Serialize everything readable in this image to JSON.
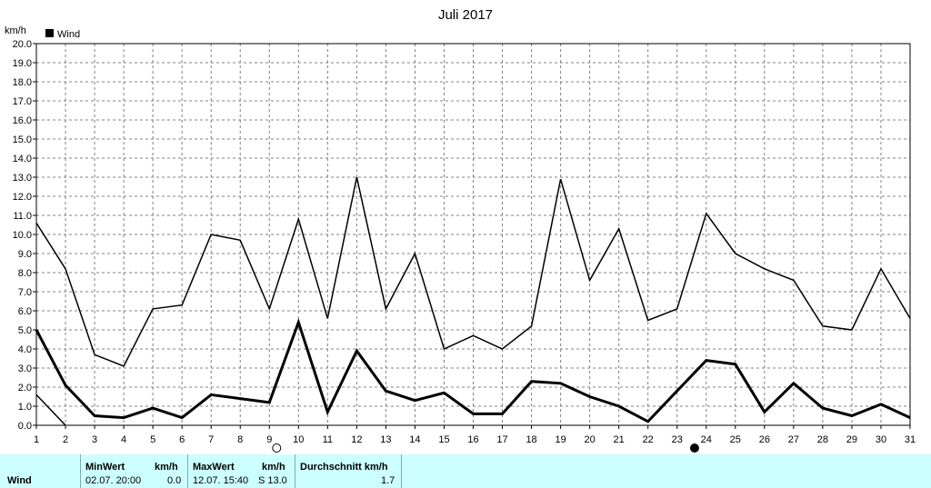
{
  "chart_data": {
    "type": "line",
    "title": "Juli 2017",
    "ylabel": "km/h",
    "ylim": [
      0,
      20
    ],
    "yticks": [
      "0.0",
      "1.0",
      "2.0",
      "3.0",
      "4.0",
      "5.0",
      "6.0",
      "7.0",
      "8.0",
      "9.0",
      "10.0",
      "11.0",
      "12.0",
      "13.0",
      "14.0",
      "15.0",
      "16.0",
      "17.0",
      "18.0",
      "19.0",
      "20.0"
    ],
    "x": [
      1,
      2,
      3,
      4,
      5,
      6,
      7,
      8,
      9,
      10,
      11,
      12,
      13,
      14,
      15,
      16,
      17,
      18,
      19,
      20,
      21,
      22,
      23,
      24,
      25,
      26,
      27,
      28,
      29,
      30,
      31
    ],
    "xticks": [
      "1",
      "2",
      "3",
      "4",
      "5",
      "6",
      "7",
      "8",
      "9",
      "10",
      "11",
      "12",
      "13",
      "14",
      "15",
      "16",
      "17",
      "18",
      "19",
      "20",
      "21",
      "22",
      "23",
      "24",
      "25",
      "26",
      "27",
      "28",
      "29",
      "30",
      "31"
    ],
    "grid": true,
    "legend": {
      "position": "top-left",
      "label": "Wind"
    },
    "series": [
      {
        "role": "max",
        "values": [
          10.6,
          8.2,
          3.7,
          3.1,
          6.1,
          6.3,
          10.0,
          9.7,
          6.1,
          10.8,
          5.6,
          13.0,
          6.1,
          9.0,
          4.0,
          4.7,
          4.0,
          5.2,
          12.9,
          7.6,
          10.3,
          5.5,
          6.1,
          11.1,
          9.0,
          8.2,
          7.6,
          5.2,
          5.0,
          8.2,
          5.6
        ]
      },
      {
        "role": "avg",
        "values": [
          5.0,
          2.1,
          0.5,
          0.4,
          0.9,
          0.4,
          1.6,
          1.4,
          1.2,
          5.4,
          0.7,
          3.9,
          1.8,
          1.3,
          1.7,
          0.6,
          0.6,
          2.3,
          2.2,
          1.5,
          1.0,
          0.2,
          1.8,
          3.4,
          3.2,
          0.7,
          2.2,
          0.9,
          0.5,
          1.1,
          0.4
        ]
      },
      {
        "role": "min",
        "values": [
          1.6,
          0.0,
          null,
          null,
          null,
          null,
          null,
          null,
          null,
          null,
          null,
          null,
          null,
          null,
          null,
          null,
          null,
          null,
          null,
          null,
          null,
          null,
          null,
          null,
          null,
          null,
          null,
          null,
          null,
          null,
          null
        ]
      }
    ],
    "moon_markers": [
      {
        "x": 9.25,
        "phase": "full"
      },
      {
        "x": 23.6,
        "phase": "new"
      }
    ]
  },
  "stats": {
    "label": "Wind",
    "min_header": "MinWert",
    "min_unit": "km/h",
    "min_time": "02.07.  20:00",
    "min_value": "0.0",
    "max_header": "MaxWert",
    "max_unit": "km/h",
    "max_time": "12.07.  15:40",
    "max_value": "S 13.0",
    "avg_header": "Durchschnitt km/h",
    "avg_value": "1.7"
  }
}
